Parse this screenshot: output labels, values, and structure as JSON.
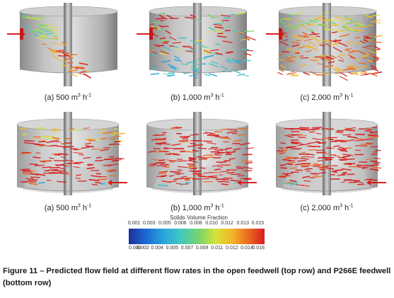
{
  "panels": [
    {
      "id": "top-a",
      "caption_text": "(a) 500 m",
      "caption_exp": "3",
      "caption_unit": " h",
      "caption_unit_exp": "-1",
      "feedwell": "open",
      "arrow_side": "left"
    },
    {
      "id": "top-b",
      "caption_text": "(b) 1,000 m",
      "caption_exp": "3",
      "caption_unit": " h",
      "caption_unit_exp": "-1",
      "feedwell": "open",
      "arrow_side": "left"
    },
    {
      "id": "top-c",
      "caption_text": "(c) 2,000 m",
      "caption_exp": "3",
      "caption_unit": " h",
      "caption_unit_exp": "-1",
      "feedwell": "open",
      "arrow_side": "left"
    },
    {
      "id": "bot-a",
      "caption_text": "(a) 500 m",
      "caption_exp": "3",
      "caption_unit": " h",
      "caption_unit_exp": "-1",
      "feedwell": "P266E",
      "arrow_side": "right"
    },
    {
      "id": "bot-b",
      "caption_text": "(b) 1,000 m",
      "caption_exp": "3",
      "caption_unit": " h",
      "caption_unit_exp": "-1",
      "feedwell": "P266E",
      "arrow_side": "right"
    },
    {
      "id": "bot-c",
      "caption_text": "(c) 2,000 m",
      "caption_exp": "3",
      "caption_unit": " h",
      "caption_unit_exp": "-1",
      "feedwell": "P266E",
      "arrow_side": "right"
    }
  ],
  "legend": {
    "title": "Solids Volume Fraction",
    "ticks_top": [
      "0.001",
      "0.003",
      "0.005",
      "0.006",
      "0.008",
      "0.010",
      "0.012",
      "0.013",
      "0.015"
    ],
    "ticks_bottom": [
      "0.000",
      "0.002",
      "0.004",
      "0.005",
      "0.007",
      "0.009",
      "0.011",
      "0.012",
      "0.014",
      "0.016"
    ],
    "colors": [
      "#1b2f9c",
      "#1e6fd6",
      "#29a7de",
      "#41c8c0",
      "#7ad46b",
      "#d6e23a",
      "#f3b62a",
      "#ec6a22",
      "#d81e1e"
    ]
  },
  "figure_caption": "Figure 11 – Predicted flow field at different flow rates in the open feedwell (top row) and P266E feedwell (bottom row)"
}
